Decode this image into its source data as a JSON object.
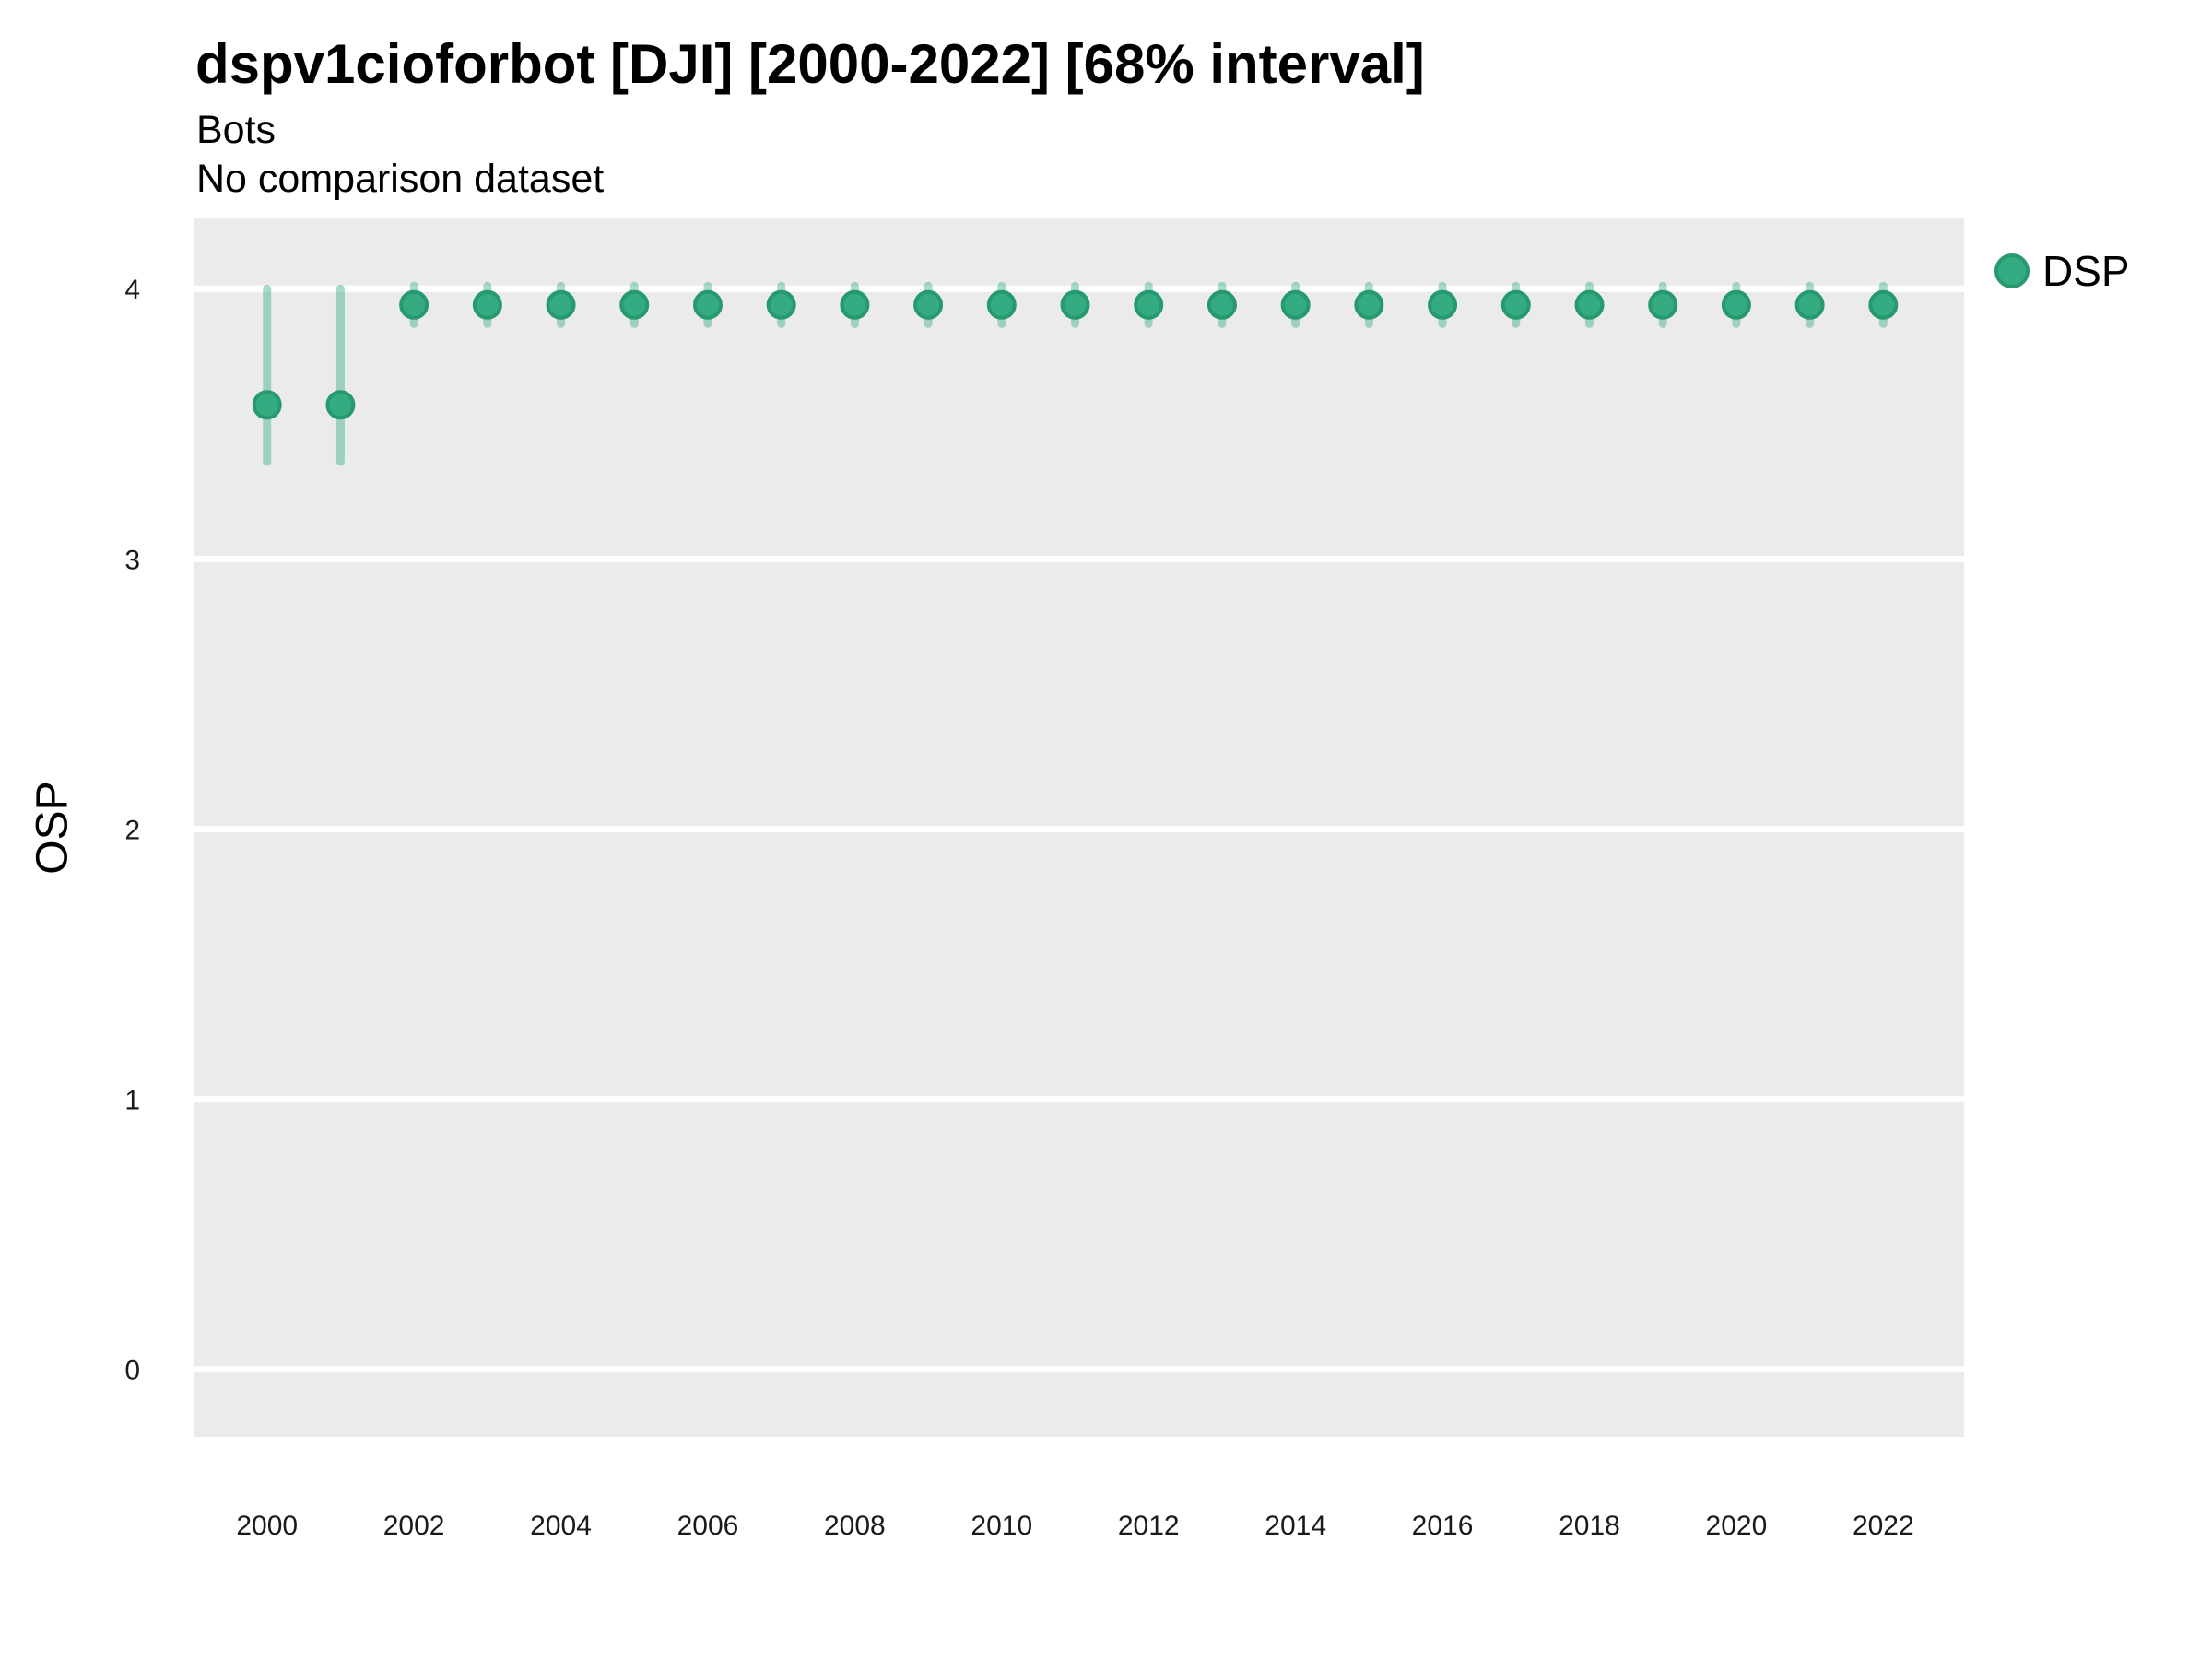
{
  "header": {
    "title": "dspv1cioforbot [DJI] [2000-2022] [68% interval]",
    "subtitle_line1": "Bots",
    "subtitle_line2": "No comparison dataset"
  },
  "chart_data": {
    "type": "scatter",
    "title": "dspv1cioforbot [DJI] [2000-2022] [68% interval]",
    "subtitle": [
      "Bots",
      "No comparison dataset"
    ],
    "xlabel": "",
    "ylabel": "OSP",
    "interval": "68% interval",
    "grid": true,
    "legend_position": "right-top",
    "x_ticks": [
      "2000",
      "2002",
      "2004",
      "2006",
      "2008",
      "2010",
      "2012",
      "2014",
      "2016",
      "2018",
      "2020",
      "2022"
    ],
    "x_tick_values": [
      2000,
      2002,
      2004,
      2006,
      2008,
      2010,
      2012,
      2014,
      2016,
      2018,
      2020,
      2022
    ],
    "y_ticks": [
      "4",
      "3",
      "2",
      "1",
      "0"
    ],
    "y_tick_values": [
      4,
      3,
      2,
      1,
      0
    ],
    "xlim": [
      1999.0,
      2023.1
    ],
    "ylim": [
      -0.25,
      4.26
    ],
    "colors": {
      "point_fill": "#35ab81",
      "point_stroke": "#27996f",
      "error_bar": "#35ab81",
      "panel_bg": "#ebebeb",
      "grid": "#ffffff",
      "tick_text": "#1a1a1a"
    },
    "series": [
      {
        "name": "DSP",
        "color": "#35ab81",
        "points": [
          {
            "x": 2000,
            "y": 3.57,
            "lo": 3.36,
            "hi": 4.0
          },
          {
            "x": 2001,
            "y": 3.57,
            "lo": 3.36,
            "hi": 4.0
          },
          {
            "x": 2002,
            "y": 3.94,
            "lo": 3.87,
            "hi": 4.01
          },
          {
            "x": 2003,
            "y": 3.94,
            "lo": 3.87,
            "hi": 4.01
          },
          {
            "x": 2004,
            "y": 3.94,
            "lo": 3.87,
            "hi": 4.01
          },
          {
            "x": 2005,
            "y": 3.94,
            "lo": 3.87,
            "hi": 4.01
          },
          {
            "x": 2006,
            "y": 3.94,
            "lo": 3.87,
            "hi": 4.01
          },
          {
            "x": 2007,
            "y": 3.94,
            "lo": 3.87,
            "hi": 4.01
          },
          {
            "x": 2008,
            "y": 3.94,
            "lo": 3.87,
            "hi": 4.01
          },
          {
            "x": 2009,
            "y": 3.94,
            "lo": 3.87,
            "hi": 4.01
          },
          {
            "x": 2010,
            "y": 3.94,
            "lo": 3.87,
            "hi": 4.01
          },
          {
            "x": 2011,
            "y": 3.94,
            "lo": 3.87,
            "hi": 4.01
          },
          {
            "x": 2012,
            "y": 3.94,
            "lo": 3.87,
            "hi": 4.01
          },
          {
            "x": 2013,
            "y": 3.94,
            "lo": 3.87,
            "hi": 4.01
          },
          {
            "x": 2014,
            "y": 3.94,
            "lo": 3.87,
            "hi": 4.01
          },
          {
            "x": 2015,
            "y": 3.94,
            "lo": 3.87,
            "hi": 4.01
          },
          {
            "x": 2016,
            "y": 3.94,
            "lo": 3.87,
            "hi": 4.01
          },
          {
            "x": 2017,
            "y": 3.94,
            "lo": 3.87,
            "hi": 4.01
          },
          {
            "x": 2018,
            "y": 3.94,
            "lo": 3.87,
            "hi": 4.01
          },
          {
            "x": 2019,
            "y": 3.94,
            "lo": 3.87,
            "hi": 4.01
          },
          {
            "x": 2020,
            "y": 3.94,
            "lo": 3.87,
            "hi": 4.01
          },
          {
            "x": 2021,
            "y": 3.94,
            "lo": 3.87,
            "hi": 4.01
          },
          {
            "x": 2022,
            "y": 3.94,
            "lo": 3.87,
            "hi": 4.01
          }
        ]
      }
    ]
  }
}
